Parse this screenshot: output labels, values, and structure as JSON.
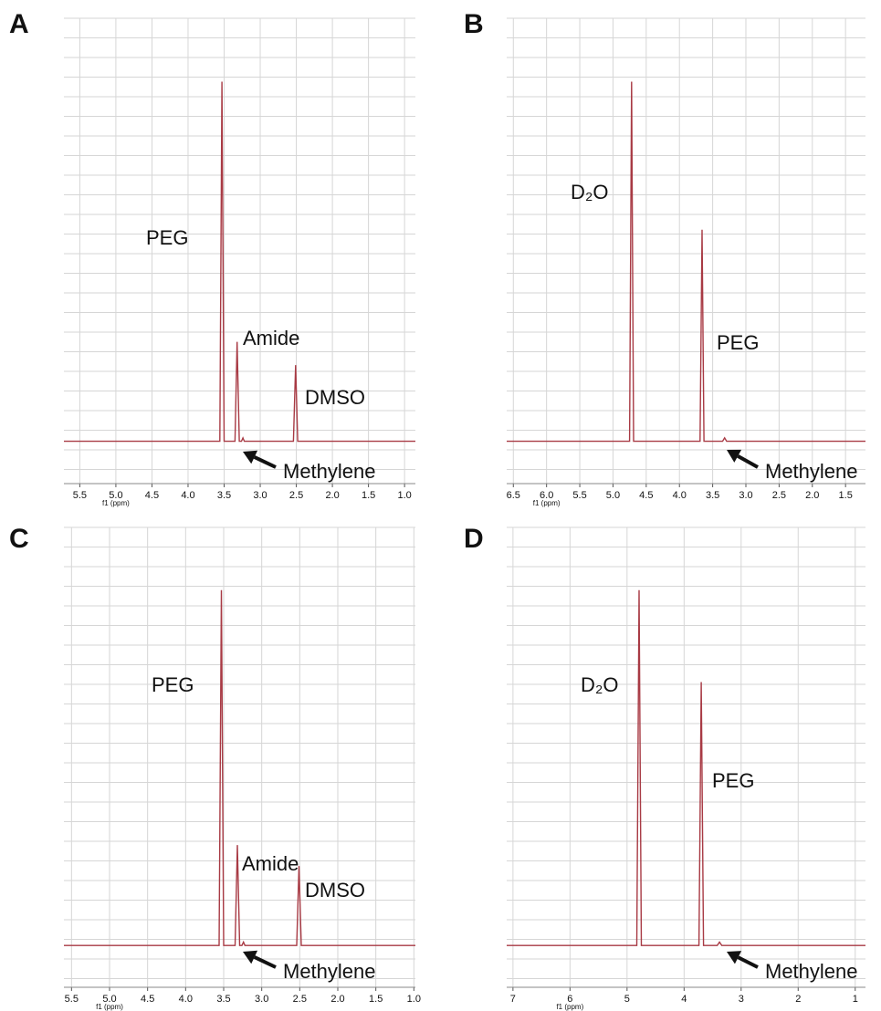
{
  "chart_data": [
    {
      "type": "line",
      "title": "A",
      "x_label": "f1 (ppm)",
      "xlim": [
        5.72,
        0.85
      ],
      "ylim": [
        -10,
        100
      ],
      "grid": true,
      "xticks": [
        {
          "value": 5.5,
          "label": "5.5"
        },
        {
          "value": 5,
          "label": "5.0"
        },
        {
          "value": 4.5,
          "label": "4.5"
        },
        {
          "value": 4,
          "label": "4.0"
        },
        {
          "value": 3.5,
          "label": "3.5"
        },
        {
          "value": 3,
          "label": "3.0"
        },
        {
          "value": 2.5,
          "label": "2.5"
        },
        {
          "value": 2,
          "label": "2.0"
        },
        {
          "value": 1.5,
          "label": "1.5"
        },
        {
          "value": 1,
          "label": "1.0"
        }
      ],
      "series": [
        {
          "color": "#a83a44",
          "x": [
            5.72,
            3.56,
            3.53,
            3.5,
            3.35,
            3.32,
            3.29,
            3.26,
            3.24,
            3.22,
            2.54,
            2.51,
            2.48,
            0.85
          ],
          "values": [
            0,
            0,
            85,
            0,
            0,
            23.5,
            0,
            0,
            0.8,
            0,
            0,
            18,
            0,
            0
          ]
        }
      ],
      "annotations": [
        "PEG",
        "Amide",
        "DMSO",
        "Methylene"
      ]
    },
    {
      "type": "line",
      "title": "B",
      "x_label": "f1 (ppm)",
      "xlim": [
        6.6,
        1.2
      ],
      "ylim": [
        -10,
        100
      ],
      "grid": true,
      "xticks": [
        {
          "value": 6.5,
          "label": "6.5"
        },
        {
          "value": 6,
          "label": "6.0"
        },
        {
          "value": 5.5,
          "label": "5.5"
        },
        {
          "value": 5,
          "label": "5.0"
        },
        {
          "value": 4.5,
          "label": "4.5"
        },
        {
          "value": 4,
          "label": "4.0"
        },
        {
          "value": 3.5,
          "label": "3.5"
        },
        {
          "value": 3,
          "label": "3.0"
        },
        {
          "value": 2.5,
          "label": "2.5"
        },
        {
          "value": 2,
          "label": "2.0"
        },
        {
          "value": 1.5,
          "label": "1.5"
        }
      ],
      "series": [
        {
          "color": "#a83a44",
          "x": [
            6.6,
            4.75,
            4.72,
            4.69,
            3.69,
            3.66,
            3.63,
            3.35,
            3.32,
            3.29,
            1.2
          ],
          "values": [
            0,
            0,
            85,
            0,
            0,
            50,
            0,
            0,
            0.8,
            0,
            0
          ]
        }
      ],
      "annotations": [
        "D₂O",
        "PEG",
        "Methylene"
      ]
    },
    {
      "type": "line",
      "title": "C",
      "x_label": "f1 (ppm)",
      "xlim": [
        5.6,
        0.98
      ],
      "ylim": [
        -10,
        100
      ],
      "grid": true,
      "xticks": [
        {
          "value": 5.5,
          "label": "5.5"
        },
        {
          "value": 5,
          "label": "5.0"
        },
        {
          "value": 4.5,
          "label": "4.5"
        },
        {
          "value": 4,
          "label": "4.0"
        },
        {
          "value": 3.5,
          "label": "3.5"
        },
        {
          "value": 3,
          "label": "3.0"
        },
        {
          "value": 2.5,
          "label": "2.5"
        },
        {
          "value": 2,
          "label": "2.0"
        },
        {
          "value": 1.5,
          "label": "1.5"
        },
        {
          "value": 1,
          "label": "1.0"
        }
      ],
      "series": [
        {
          "color": "#a83a44",
          "x": [
            5.6,
            3.56,
            3.53,
            3.5,
            3.35,
            3.32,
            3.29,
            3.26,
            3.24,
            3.22,
            2.54,
            2.51,
            2.48,
            0.98
          ],
          "values": [
            0,
            0,
            85,
            0,
            0,
            24,
            0,
            0,
            0.8,
            0,
            0,
            19,
            0,
            0
          ]
        }
      ],
      "annotations": [
        "PEG",
        "Amide",
        "DMSO",
        "Methylene"
      ]
    },
    {
      "type": "line",
      "title": "D",
      "x_label": "f1 (ppm)",
      "xlim": [
        7.11,
        0.82
      ],
      "ylim": [
        -10,
        100
      ],
      "grid": true,
      "xticks": [
        7,
        6,
        5,
        4,
        3,
        2,
        1
      ],
      "series": [
        {
          "color": "#a83a44",
          "x": [
            7.11,
            4.83,
            4.79,
            4.75,
            3.74,
            3.7,
            3.66,
            3.42,
            3.38,
            3.34,
            0.82
          ],
          "values": [
            0,
            0,
            85,
            0,
            0,
            63,
            0,
            0,
            0.8,
            0,
            0
          ]
        }
      ],
      "annotations": [
        "D₂O",
        "PEG",
        "Methylene"
      ]
    }
  ]
}
